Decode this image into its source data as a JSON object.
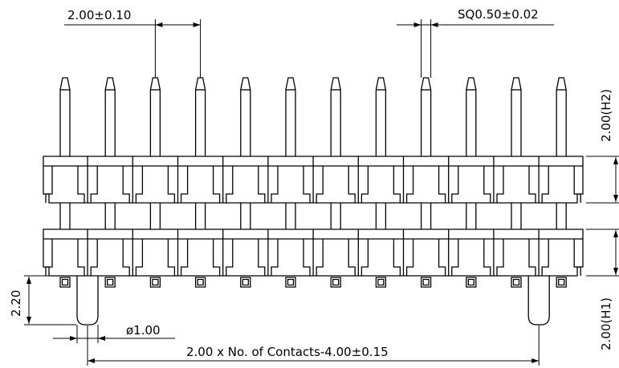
{
  "dimensions": {
    "pitch": "2.00±0.10",
    "pin_square": "SQ0.50±0.02",
    "h2": "2.00(H2)",
    "h1": "2.00(H1)",
    "peg_height": "2.20",
    "peg_diameter": "ø1.00",
    "peg_spacing": "2.00 x No. of Contacts-4.00±0.15"
  },
  "drawing": {
    "pin_count": 12,
    "peg_count": 2,
    "line_color": "#000000",
    "background": "#ffffff"
  }
}
